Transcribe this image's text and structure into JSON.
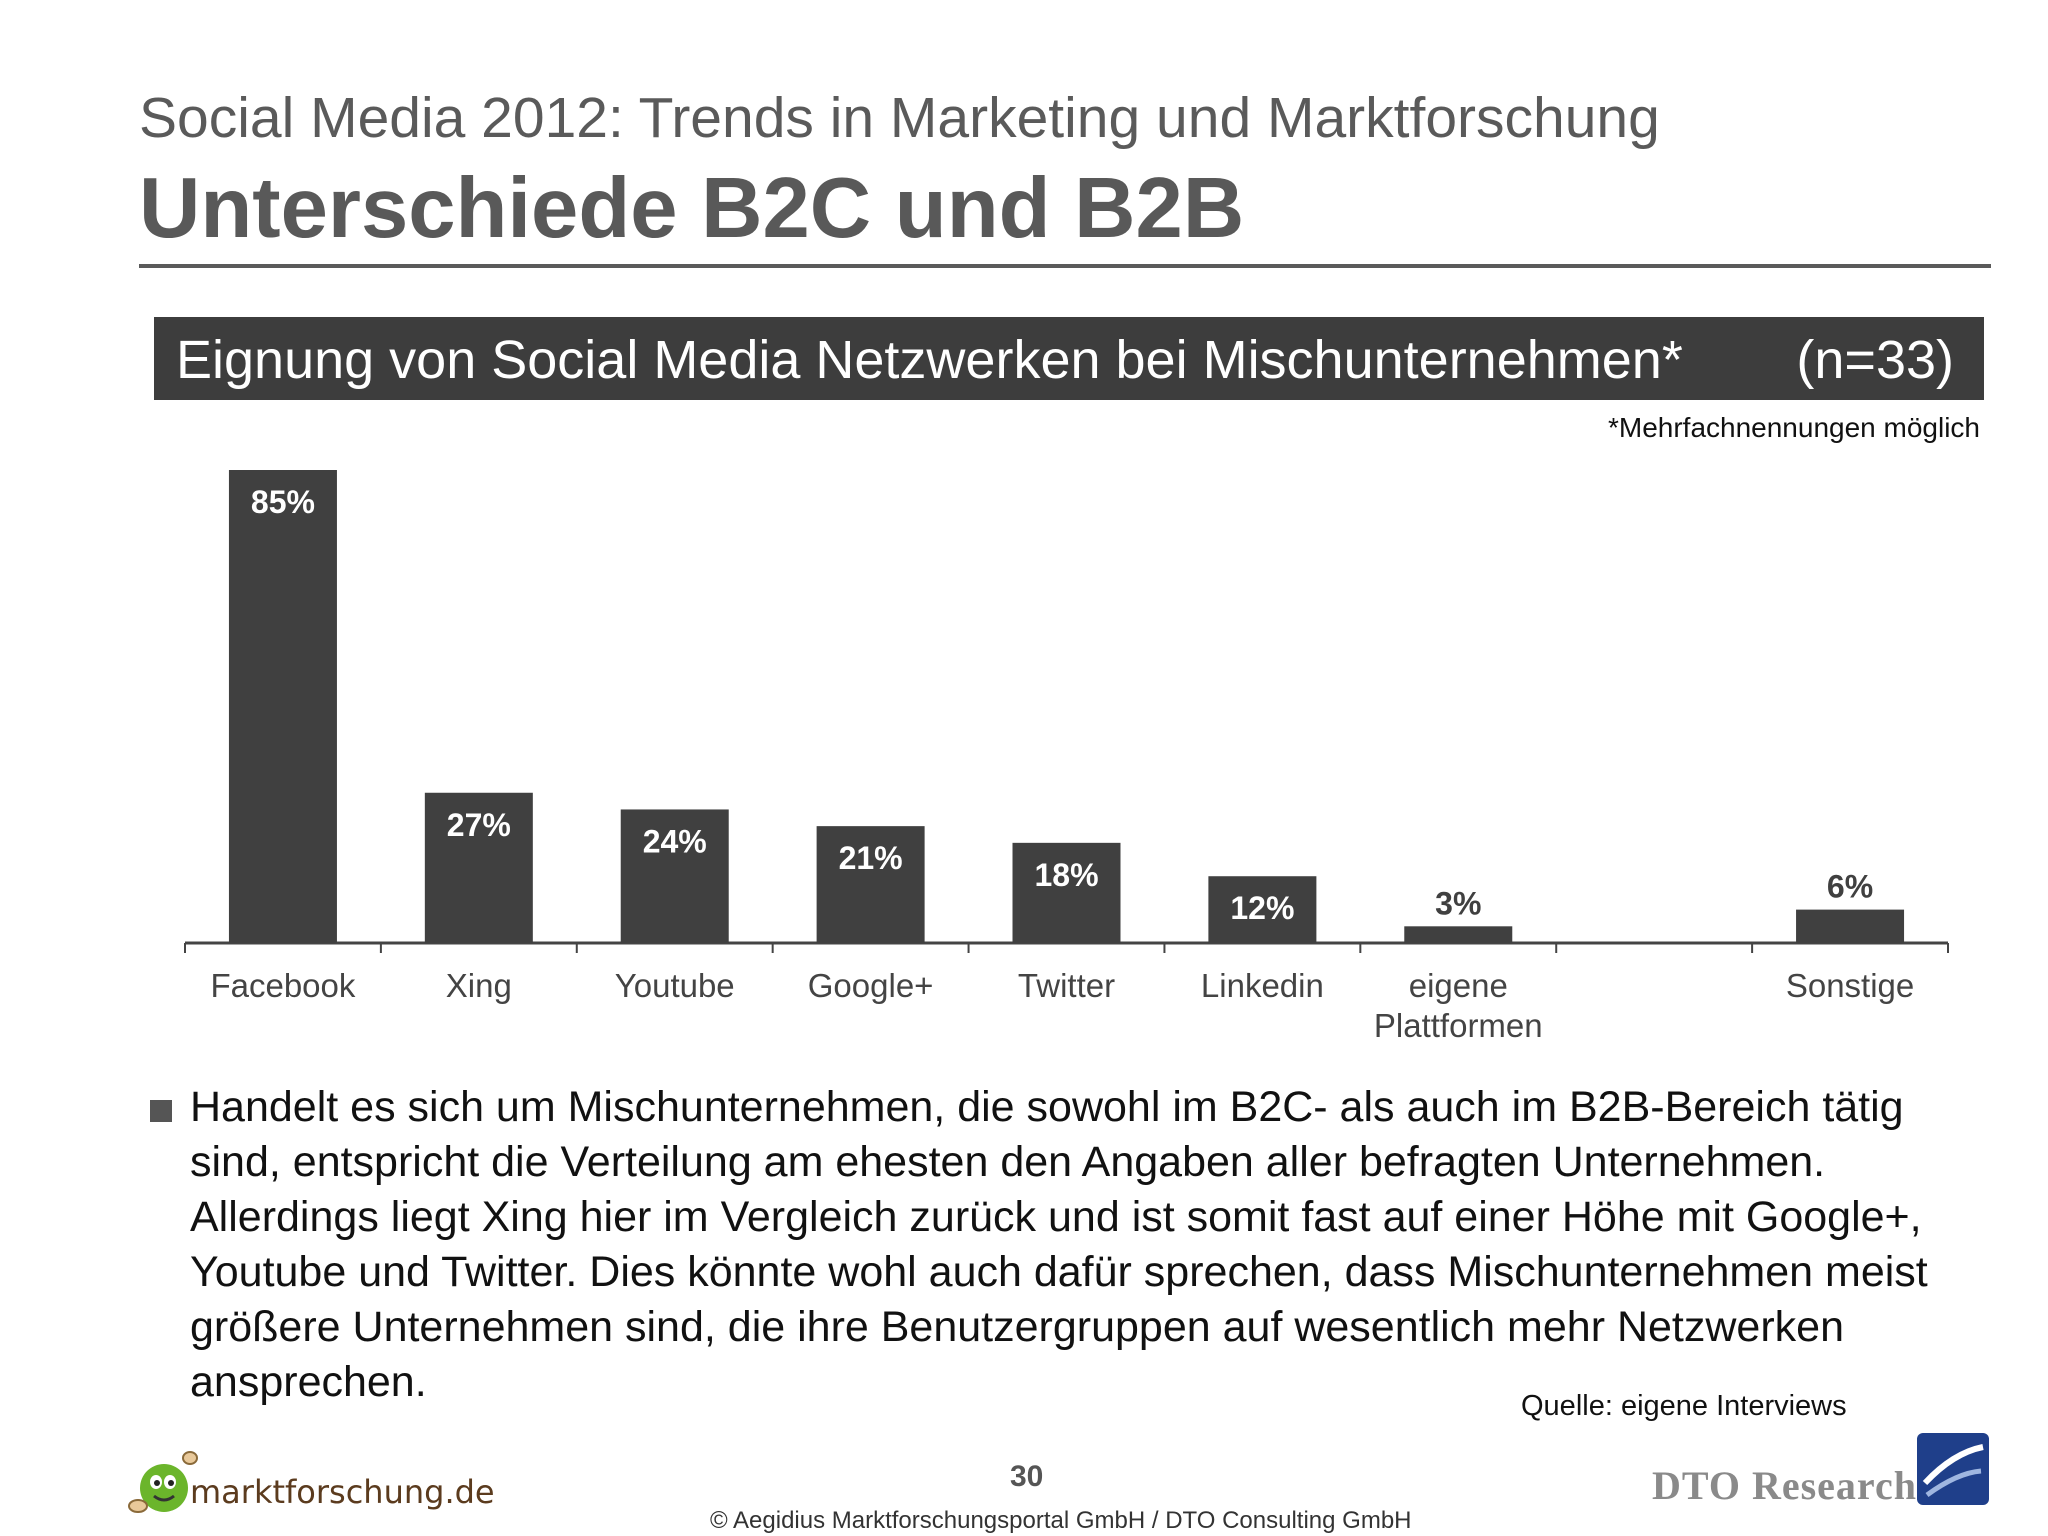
{
  "header": {
    "subtitle": "Social Media 2012: Trends in Marketing und Marktforschung",
    "title": "Unterschiede B2C und B2B"
  },
  "chart_data": {
    "type": "bar",
    "title": "Eignung von Social Media Netzwerken bei Mischunternehmen*",
    "sample_size": "(n=33)",
    "footnote": "*Mehrfachnennungen möglich",
    "categories": [
      "Facebook",
      "Xing",
      "Youtube",
      "Google+",
      "Twitter",
      "Linkedin",
      "eigene Plattformen",
      "",
      "Sonstige"
    ],
    "category_lines": [
      [
        "Facebook"
      ],
      [
        "Xing"
      ],
      [
        "Youtube"
      ],
      [
        "Google+"
      ],
      [
        "Twitter"
      ],
      [
        "Linkedin"
      ],
      [
        "eigene",
        "Plattformen"
      ],
      [
        ""
      ],
      [
        "Sonstige"
      ]
    ],
    "values": [
      85,
      27,
      24,
      21,
      18,
      12,
      3,
      null,
      6
    ],
    "value_labels": [
      "85%",
      "27%",
      "24%",
      "21%",
      "18%",
      "12%",
      "3%",
      "",
      "6%"
    ],
    "ylim": [
      0,
      85
    ],
    "bar_color": "#404040",
    "grid": false,
    "legend": "none"
  },
  "body": {
    "bullet": "Handelt es sich um Mischunternehmen, die sowohl im B2C- als auch im B2B-Bereich tätig sind, entspricht die Verteilung am ehesten den Angaben aller befragten Unternehmen. Allerdings liegt Xing hier im Vergleich zurück und ist somit fast auf einer Höhe mit Google+, Youtube und Twitter. Dies könnte wohl auch dafür sprechen, dass Mischunternehmen meist größere Unternehmen sind, die ihre Benutzergruppen auf wesentlich mehr Netzwerken ansprechen.",
    "source": "Quelle: eigene Interviews"
  },
  "footer": {
    "page_number": "30",
    "copyright": "© Aegidius Marktforschungsportal GmbH / DTO Consulting GmbH",
    "logo_left": "marktforschung.de",
    "logo_right": "DTO Research"
  },
  "colors": {
    "banner": "#3d3d3d",
    "title_text": "#595959",
    "accent_blue": "#1f3f8a"
  }
}
